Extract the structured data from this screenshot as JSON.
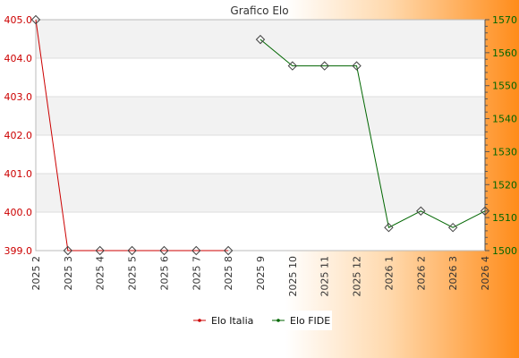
{
  "chart_data": {
    "type": "line",
    "title": "Grafico Elo",
    "categories": [
      "2025 2",
      "2025 3",
      "2025 4",
      "2025 5",
      "2025 6",
      "2025 7",
      "2025 8",
      "2025 9",
      "2025 10",
      "2025 11",
      "2025 12",
      "2026 1",
      "2026 2",
      "2026 3",
      "2026 4"
    ],
    "left_axis": {
      "ylim": [
        399.0,
        405.0
      ],
      "ticks": [
        "399.0",
        "400.0",
        "401.0",
        "402.0",
        "403.0",
        "404.0",
        "405.0"
      ],
      "color": "#cc0000"
    },
    "right_axis": {
      "ylim": [
        1500,
        1570
      ],
      "ticks": [
        "1500",
        "1510",
        "1520",
        "1530",
        "1540",
        "1550",
        "1560",
        "1570"
      ],
      "color": "#006600"
    },
    "series": [
      {
        "name": "Elo Italia",
        "axis": "left",
        "color": "#cc0000",
        "values": [
          405.0,
          399.0,
          399.0,
          399.0,
          399.0,
          399.0,
          399.0,
          null,
          null,
          null,
          null,
          null,
          null,
          null,
          null
        ]
      },
      {
        "name": "Elo FIDE",
        "axis": "right",
        "color": "#006600",
        "values": [
          null,
          null,
          null,
          null,
          null,
          null,
          null,
          1564,
          1556,
          1556,
          1556,
          1507,
          1512,
          1507,
          1512
        ]
      }
    ],
    "grid": true,
    "legend_position": "bottom"
  }
}
